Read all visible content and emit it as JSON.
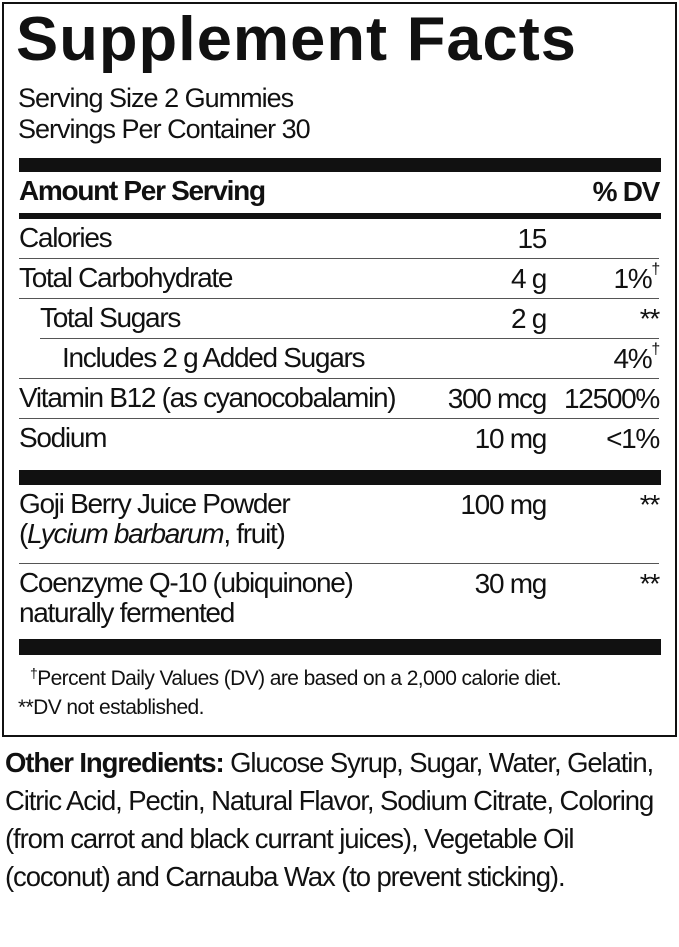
{
  "title": "Supplement Facts",
  "serving_size": "Serving Size 2 Gummies",
  "servings_per_container": "Servings Per Container 30",
  "header": {
    "amount_label": "Amount Per Serving",
    "dv_label": "% DV"
  },
  "nutrients": [
    {
      "name": "Calories",
      "amount": "15",
      "dv": ""
    },
    {
      "name": "Total Carbohydrate",
      "amount": "4 g",
      "dv": "1%",
      "dv_mark": "†"
    },
    {
      "name": "Total Sugars",
      "amount": "2 g",
      "dv": "**"
    },
    {
      "name": "Includes 2 g Added Sugars",
      "amount": "",
      "dv": "4%",
      "dv_mark": "†"
    },
    {
      "name": "Vitamin B12 (as cyanocobalamin)",
      "amount": "300 mcg",
      "dv": "12500%"
    },
    {
      "name": "Sodium",
      "amount": "10 mg",
      "dv": "<1%"
    }
  ],
  "ingredients": [
    {
      "name": "Goji Berry Juice Powder",
      "sub_open": "(",
      "sub_italic": "Lycium barbarum",
      "sub_rest": ", fruit)",
      "amount": "100 mg",
      "dv": "**"
    },
    {
      "name": "Coenzyme Q-10 (ubiquinone)",
      "sub": "naturally fermented",
      "amount": "30 mg",
      "dv": "**"
    }
  ],
  "footnotes": {
    "dagger_mark": "†",
    "dagger": "Percent Daily Values (DV) are based on a 2,000 calorie diet.",
    "star_mark": "**",
    "star": "DV not established."
  },
  "other_ingredients": {
    "label": "Other Ingredients:",
    "text": " Glucose Syrup, Sugar, Water, Gelatin, Citric Acid, Pectin, Natural Flavor, Sodium Citrate, Coloring (from carrot and black currant juices), Vegetable Oil (coconut) and Carnauba Wax (to prevent sticking)."
  }
}
